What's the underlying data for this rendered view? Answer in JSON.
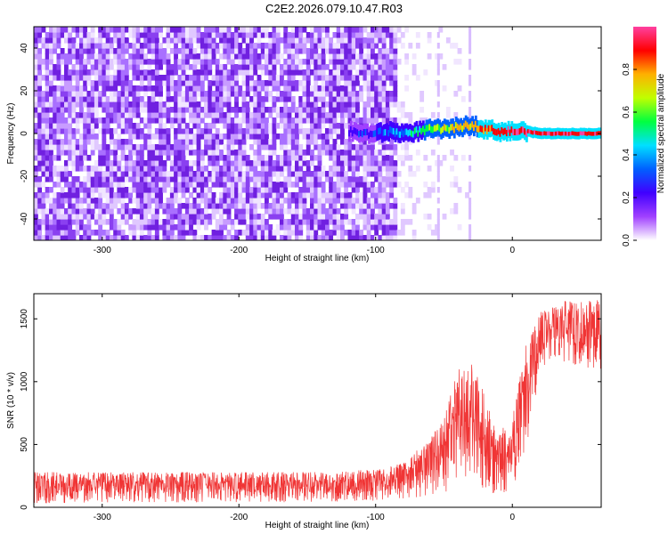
{
  "title": "C2E2.2026.079.10.47.R03",
  "chart_data": [
    {
      "type": "heatmap",
      "name": "spectrogram",
      "xlabel": "Height of straight line (km)",
      "ylabel": "Frequency (Hz)",
      "xlim": [
        -350,
        65
      ],
      "ylim": [
        -50,
        50
      ],
      "xticks": [
        -300,
        -200,
        -100,
        0
      ],
      "yticks": [
        -40,
        -20,
        0,
        20,
        40
      ],
      "colorbar": {
        "label": "Normalized spectral amplitude",
        "range": [
          0.0,
          1.0
        ],
        "ticks": [
          "0.0",
          "0.2",
          "0.4",
          "0.6",
          "0.8"
        ],
        "tick_values": [
          0.0,
          0.2,
          0.4,
          0.6,
          0.8
        ],
        "colors": [
          "#ffffff",
          "#a040ff",
          "#4000ff",
          "#0060ff",
          "#00e0ff",
          "#00ff40",
          "#c0ff00",
          "#ffb000",
          "#ff0000",
          "#ff40a0"
        ]
      },
      "noise_region_km": [
        -350,
        -85
      ],
      "fade_region_km": [
        -85,
        -30
      ],
      "signal_trace": {
        "x": [
          -120,
          -110,
          -100,
          -90,
          -80,
          -70,
          -60,
          -50,
          -40,
          -30,
          -20,
          -10,
          0,
          10,
          20,
          40,
          65
        ],
        "freq": [
          1,
          0,
          0,
          1,
          0,
          1,
          2,
          2,
          3,
          4,
          2,
          1,
          1,
          1,
          0,
          0,
          0
        ],
        "amplitude": [
          0.15,
          0.2,
          0.25,
          0.3,
          0.35,
          0.45,
          0.55,
          0.6,
          0.65,
          0.7,
          0.8,
          0.85,
          0.9,
          0.9,
          0.85,
          0.85,
          0.85
        ]
      }
    },
    {
      "type": "line",
      "name": "snr",
      "xlabel": "Height of straight line (km)",
      "ylabel": "SNR (10 * v/v)",
      "xlim": [
        -350,
        65
      ],
      "ylim": [
        0,
        1700
      ],
      "xticks": [
        -300,
        -200,
        -100,
        0
      ],
      "yticks": [
        0,
        500,
        1000,
        1500
      ],
      "color": "#f03535",
      "series": [
        {
          "name": "SNR",
          "envelope_x": [
            -350,
            -300,
            -200,
            -150,
            -100,
            -80,
            -70,
            -60,
            -50,
            -40,
            -30,
            -20,
            -10,
            0,
            10,
            20,
            30,
            40,
            50,
            65
          ],
          "envelope_low": [
            30,
            40,
            40,
            40,
            50,
            70,
            80,
            100,
            120,
            150,
            280,
            100,
            100,
            150,
            400,
            1100,
            1150,
            1150,
            1100,
            1100
          ],
          "envelope_high": [
            280,
            280,
            280,
            280,
            300,
            350,
            450,
            550,
            700,
            1100,
            1150,
            900,
            600,
            700,
            1300,
            1550,
            1600,
            1650,
            1650,
            1650
          ]
        }
      ]
    }
  ]
}
